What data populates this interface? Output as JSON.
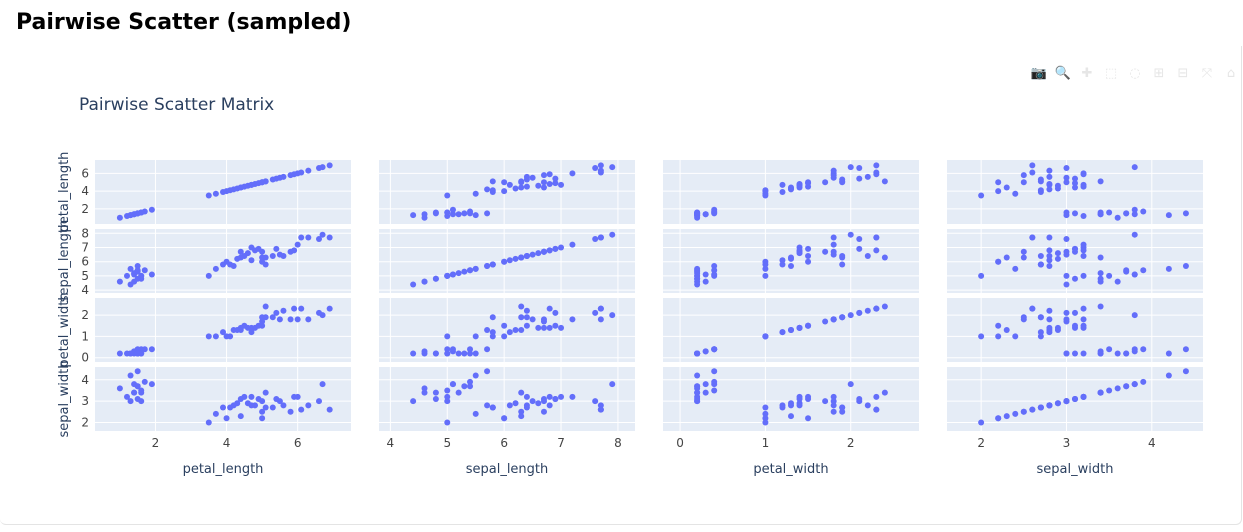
{
  "page": {
    "heading": "Pairwise Scatter (sampled)"
  },
  "modebar": {
    "buttons": [
      {
        "name": "camera-icon",
        "glyph": "📷"
      },
      {
        "name": "zoom-icon",
        "glyph": "🔍"
      },
      {
        "name": "pan-icon",
        "glyph": "✚"
      },
      {
        "name": "box-select-icon",
        "glyph": "⬚"
      },
      {
        "name": "lasso-select-icon",
        "glyph": "◌"
      },
      {
        "name": "zoom-in-icon",
        "glyph": "⊞"
      },
      {
        "name": "zoom-out-icon",
        "glyph": "⊟"
      },
      {
        "name": "autoscale-icon",
        "glyph": "⤧"
      },
      {
        "name": "reset-axes-icon",
        "glyph": "⌂"
      }
    ]
  },
  "colors": {
    "marker": "#636efa",
    "plot_bg": "#e5ecf6",
    "grid": "#ffffff",
    "text": "#444444",
    "title": "#2a3f5f"
  },
  "chart_data": {
    "type": "scatter",
    "title": "Pairwise Scatter Matrix",
    "dimensions": [
      "petal_length",
      "sepal_length",
      "petal_width",
      "sepal_width"
    ],
    "axes": {
      "petal_length": {
        "range": [
          0.3,
          7.5
        ],
        "ticks": [
          2,
          4,
          6
        ]
      },
      "sepal_length": {
        "range": [
          3.8,
          8.3
        ],
        "ticks": [
          4,
          5,
          6,
          7,
          8
        ]
      },
      "petal_width": {
        "range": [
          -0.2,
          2.8
        ],
        "ticks": [
          0,
          1,
          2
        ]
      },
      "sepal_width": {
        "range": [
          1.6,
          4.6
        ],
        "ticks": [
          2,
          3,
          4
        ]
      }
    },
    "grid": true,
    "points": [
      [
        1.3,
        4.4,
        0.2,
        3.0
      ],
      [
        1.4,
        4.6,
        0.3,
        3.4
      ],
      [
        1.5,
        4.8,
        0.2,
        3.1
      ],
      [
        1.6,
        5.0,
        0.4,
        3.5
      ],
      [
        1.4,
        5.1,
        0.3,
        3.8
      ],
      [
        1.7,
        5.4,
        0.4,
        3.9
      ],
      [
        1.5,
        5.7,
        0.4,
        4.4
      ],
      [
        1.9,
        5.1,
        0.4,
        3.8
      ],
      [
        1.2,
        5.0,
        0.2,
        3.2
      ],
      [
        1.5,
        5.4,
        0.2,
        3.7
      ],
      [
        1.4,
        5.2,
        0.2,
        3.4
      ],
      [
        1.6,
        4.8,
        0.2,
        3.4
      ],
      [
        1.3,
        5.5,
        0.2,
        4.2
      ],
      [
        1.0,
        4.6,
        0.2,
        3.6
      ],
      [
        1.5,
        5.3,
        0.2,
        3.7
      ],
      [
        1.6,
        5.0,
        0.2,
        3.0
      ],
      [
        3.5,
        5.0,
        1.0,
        2.0
      ],
      [
        3.7,
        5.5,
        1.0,
        2.4
      ],
      [
        3.9,
        5.8,
        1.2,
        2.7
      ],
      [
        4.0,
        6.0,
        1.0,
        2.2
      ],
      [
        4.1,
        5.8,
        1.0,
        2.7
      ],
      [
        4.2,
        5.7,
        1.3,
        2.8
      ],
      [
        4.4,
        6.7,
        1.4,
        3.1
      ],
      [
        4.5,
        6.4,
        1.5,
        3.2
      ],
      [
        4.6,
        6.6,
        1.4,
        2.9
      ],
      [
        4.7,
        7.0,
        1.4,
        3.2
      ],
      [
        4.8,
        6.8,
        1.4,
        2.8
      ],
      [
        4.9,
        6.9,
        1.5,
        3.1
      ],
      [
        5.0,
        6.7,
        1.7,
        3.0
      ],
      [
        4.3,
        6.2,
        1.3,
        2.9
      ],
      [
        4.4,
        6.3,
        1.3,
        2.3
      ],
      [
        4.7,
        6.1,
        1.2,
        2.8
      ],
      [
        5.0,
        6.0,
        1.5,
        2.2
      ],
      [
        5.1,
        6.3,
        2.4,
        3.4
      ],
      [
        5.6,
        6.4,
        2.2,
        2.8
      ],
      [
        5.8,
        6.7,
        1.8,
        2.5
      ],
      [
        6.0,
        7.2,
        1.8,
        3.2
      ],
      [
        5.5,
        6.5,
        1.8,
        3.0
      ],
      [
        5.4,
        6.9,
        2.1,
        3.1
      ],
      [
        5.9,
        6.8,
        2.3,
        3.2
      ],
      [
        6.1,
        7.7,
        2.3,
        2.6
      ],
      [
        6.3,
        7.7,
        1.8,
        2.8
      ],
      [
        6.7,
        7.9,
        2.0,
        3.8
      ],
      [
        6.9,
        7.7,
        2.3,
        2.6
      ],
      [
        6.6,
        7.6,
        2.1,
        3.0
      ],
      [
        5.1,
        5.8,
        1.9,
        2.7
      ],
      [
        5.3,
        6.4,
        1.9,
        2.7
      ],
      [
        5.0,
        6.3,
        1.9,
        2.5
      ]
    ]
  }
}
